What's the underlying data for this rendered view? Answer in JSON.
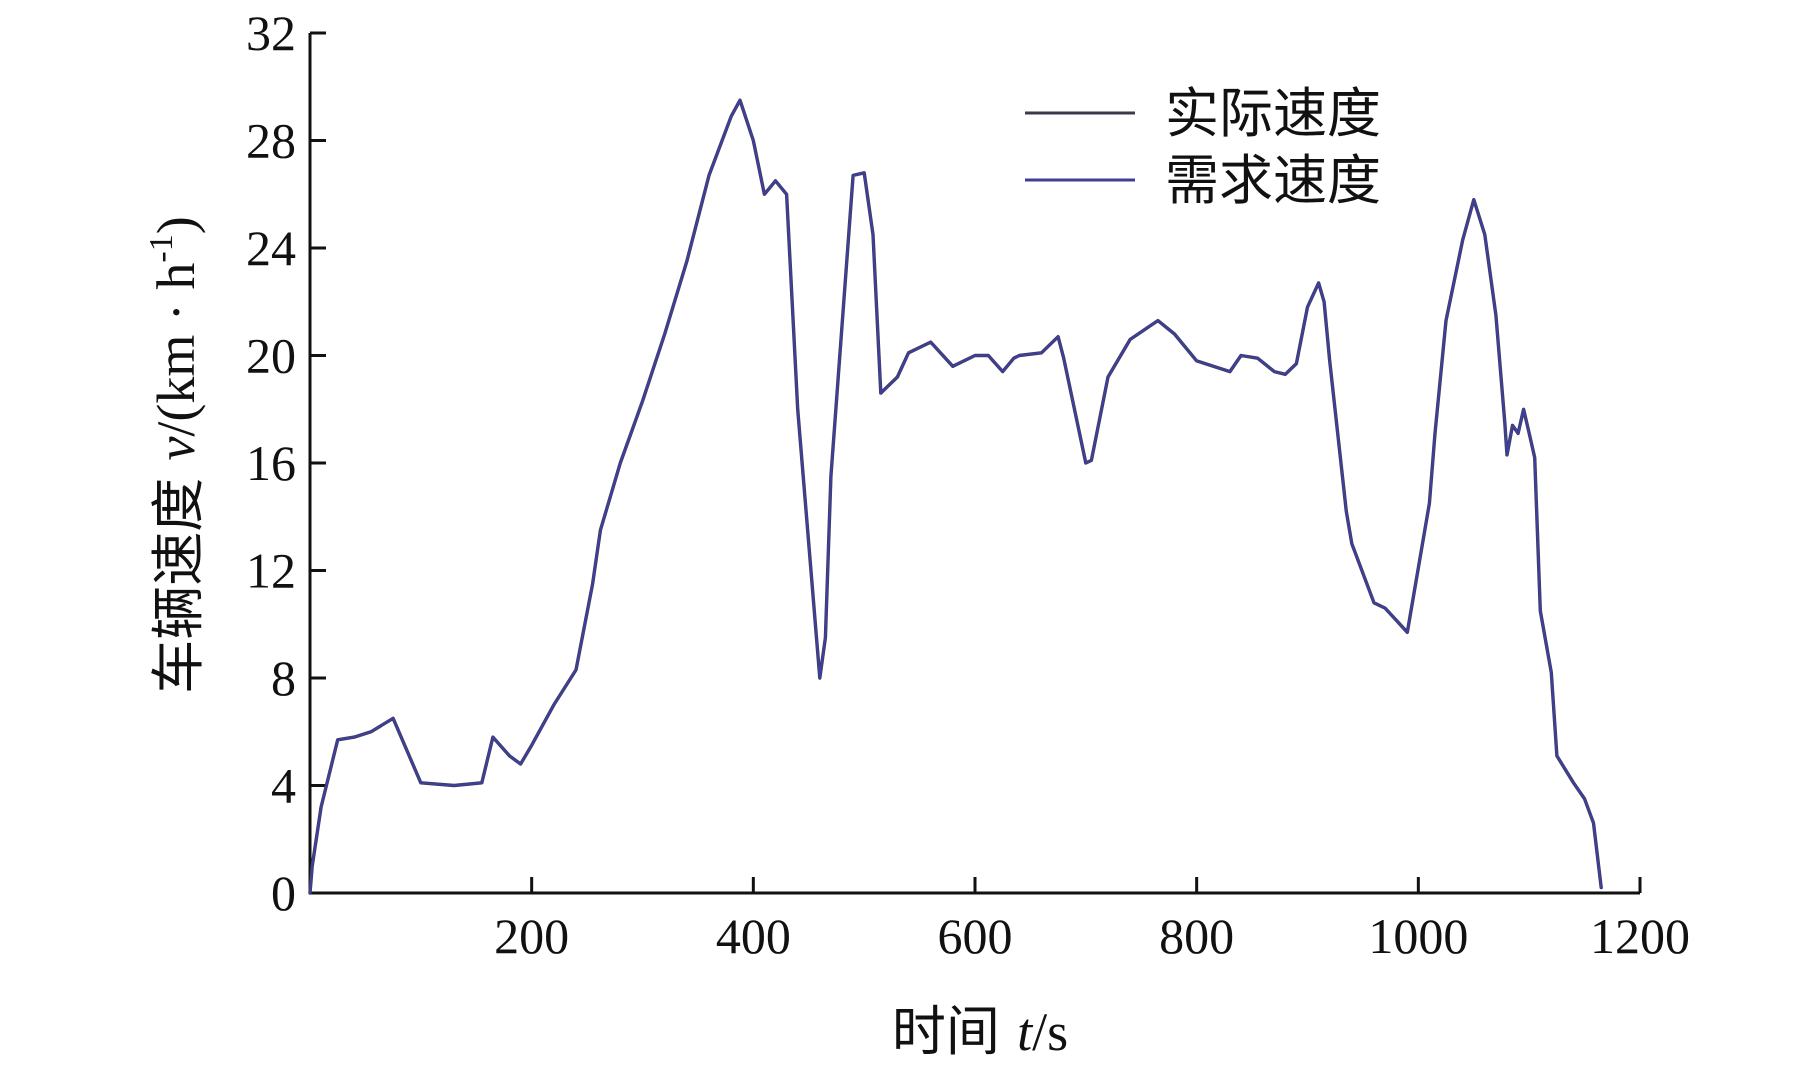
{
  "chart_data": {
    "type": "line",
    "xlabel": {
      "prefix": "时间 ",
      "var": "t",
      "unit": "/s"
    },
    "ylabel": {
      "prefix": "车辆速度 ",
      "var": "v",
      "unit_open": "/(km · h",
      "unit_sup": "-1",
      "unit_close": ")"
    },
    "xlim": [
      0,
      1200
    ],
    "ylim": [
      0,
      32
    ],
    "xticks": [
      200,
      400,
      600,
      800,
      1000,
      1200
    ],
    "yticks": [
      0,
      4,
      8,
      12,
      16,
      20,
      24,
      28,
      32
    ],
    "grid": false,
    "legend_position": "top-right",
    "series": [
      {
        "name": "实际速度",
        "color": "#3a3a4a",
        "x": [
          0,
          2,
          10,
          25,
          40,
          55,
          75,
          100,
          130,
          155,
          165,
          180,
          190,
          200,
          220,
          240,
          255,
          262,
          280,
          300,
          320,
          340,
          360,
          380,
          388,
          400,
          410,
          420,
          430,
          440,
          460,
          465,
          470,
          490,
          500,
          508,
          515,
          530,
          540,
          560,
          580,
          600,
          612,
          625,
          635,
          640,
          660,
          675,
          680,
          700,
          705,
          720,
          740,
          765,
          780,
          800,
          830,
          840,
          855,
          870,
          880,
          890,
          900,
          910,
          915,
          920,
          935,
          940,
          960,
          970,
          990,
          1010,
          1015,
          1025,
          1040,
          1050,
          1060,
          1070,
          1078,
          1080,
          1085,
          1090,
          1095,
          1100,
          1105,
          1110,
          1120,
          1125,
          1140,
          1150,
          1158,
          1165
        ],
        "y": [
          0,
          1,
          3.2,
          5.7,
          5.8,
          6,
          6.5,
          4.1,
          4,
          4.1,
          5.8,
          5.1,
          4.8,
          5.5,
          7,
          8.3,
          11.5,
          13.5,
          16,
          18.3,
          20.8,
          23.5,
          26.7,
          28.9,
          29.5,
          28,
          26,
          26.5,
          26,
          18,
          8,
          9.5,
          15.5,
          26.7,
          26.8,
          24.5,
          18.6,
          19.2,
          20.1,
          20.5,
          19.6,
          20,
          20,
          19.4,
          19.9,
          20,
          20.1,
          20.7,
          19.9,
          16,
          16.1,
          19.2,
          20.6,
          21.3,
          20.8,
          19.8,
          19.4,
          20,
          19.9,
          19.4,
          19.3,
          19.7,
          21.8,
          22.7,
          22,
          19.8,
          14.2,
          13,
          10.8,
          10.6,
          9.7,
          14.5,
          17.1,
          21.3,
          24.3,
          25.8,
          24.5,
          21.5,
          17.5,
          16.3,
          17.4,
          17.1,
          18,
          17.1,
          16.2,
          10.5,
          8.2,
          5.1,
          4.1,
          3.5,
          2.6,
          0.2
        ]
      },
      {
        "name": "需求速度",
        "color": "#3f3f9a",
        "x": [
          0,
          2,
          10,
          25,
          40,
          55,
          75,
          100,
          130,
          155,
          165,
          180,
          190,
          200,
          220,
          240,
          255,
          262,
          280,
          300,
          320,
          340,
          360,
          380,
          388,
          400,
          410,
          420,
          430,
          440,
          460,
          465,
          470,
          490,
          500,
          508,
          515,
          530,
          540,
          560,
          580,
          600,
          612,
          625,
          635,
          640,
          660,
          675,
          680,
          700,
          705,
          720,
          740,
          765,
          780,
          800,
          830,
          840,
          855,
          870,
          880,
          890,
          900,
          910,
          915,
          920,
          935,
          940,
          960,
          970,
          990,
          1010,
          1015,
          1025,
          1040,
          1050,
          1060,
          1070,
          1078,
          1080,
          1085,
          1090,
          1095,
          1100,
          1105,
          1110,
          1120,
          1125,
          1140,
          1150,
          1158,
          1165
        ],
        "y": [
          0,
          1,
          3.2,
          5.7,
          5.8,
          6,
          6.5,
          4.1,
          4,
          4.1,
          5.8,
          5.1,
          4.8,
          5.5,
          7,
          8.3,
          11.5,
          13.5,
          16,
          18.3,
          20.8,
          23.5,
          26.7,
          28.9,
          29.5,
          28,
          26,
          26.5,
          26,
          18,
          8,
          9.5,
          15.5,
          26.7,
          26.8,
          24.5,
          18.6,
          19.2,
          20.1,
          20.5,
          19.6,
          20,
          20,
          19.4,
          19.9,
          20,
          20.1,
          20.7,
          19.9,
          16,
          16.1,
          19.2,
          20.6,
          21.3,
          20.8,
          19.8,
          19.4,
          20,
          19.9,
          19.4,
          19.3,
          19.7,
          21.8,
          22.7,
          22,
          19.8,
          14.2,
          13,
          10.8,
          10.6,
          9.7,
          14.5,
          17.1,
          21.3,
          24.3,
          25.8,
          24.5,
          21.5,
          17.5,
          16.3,
          17.4,
          17.1,
          18,
          17.1,
          16.2,
          10.5,
          8.2,
          5.1,
          4.1,
          3.5,
          2.6,
          0.2
        ]
      }
    ]
  }
}
